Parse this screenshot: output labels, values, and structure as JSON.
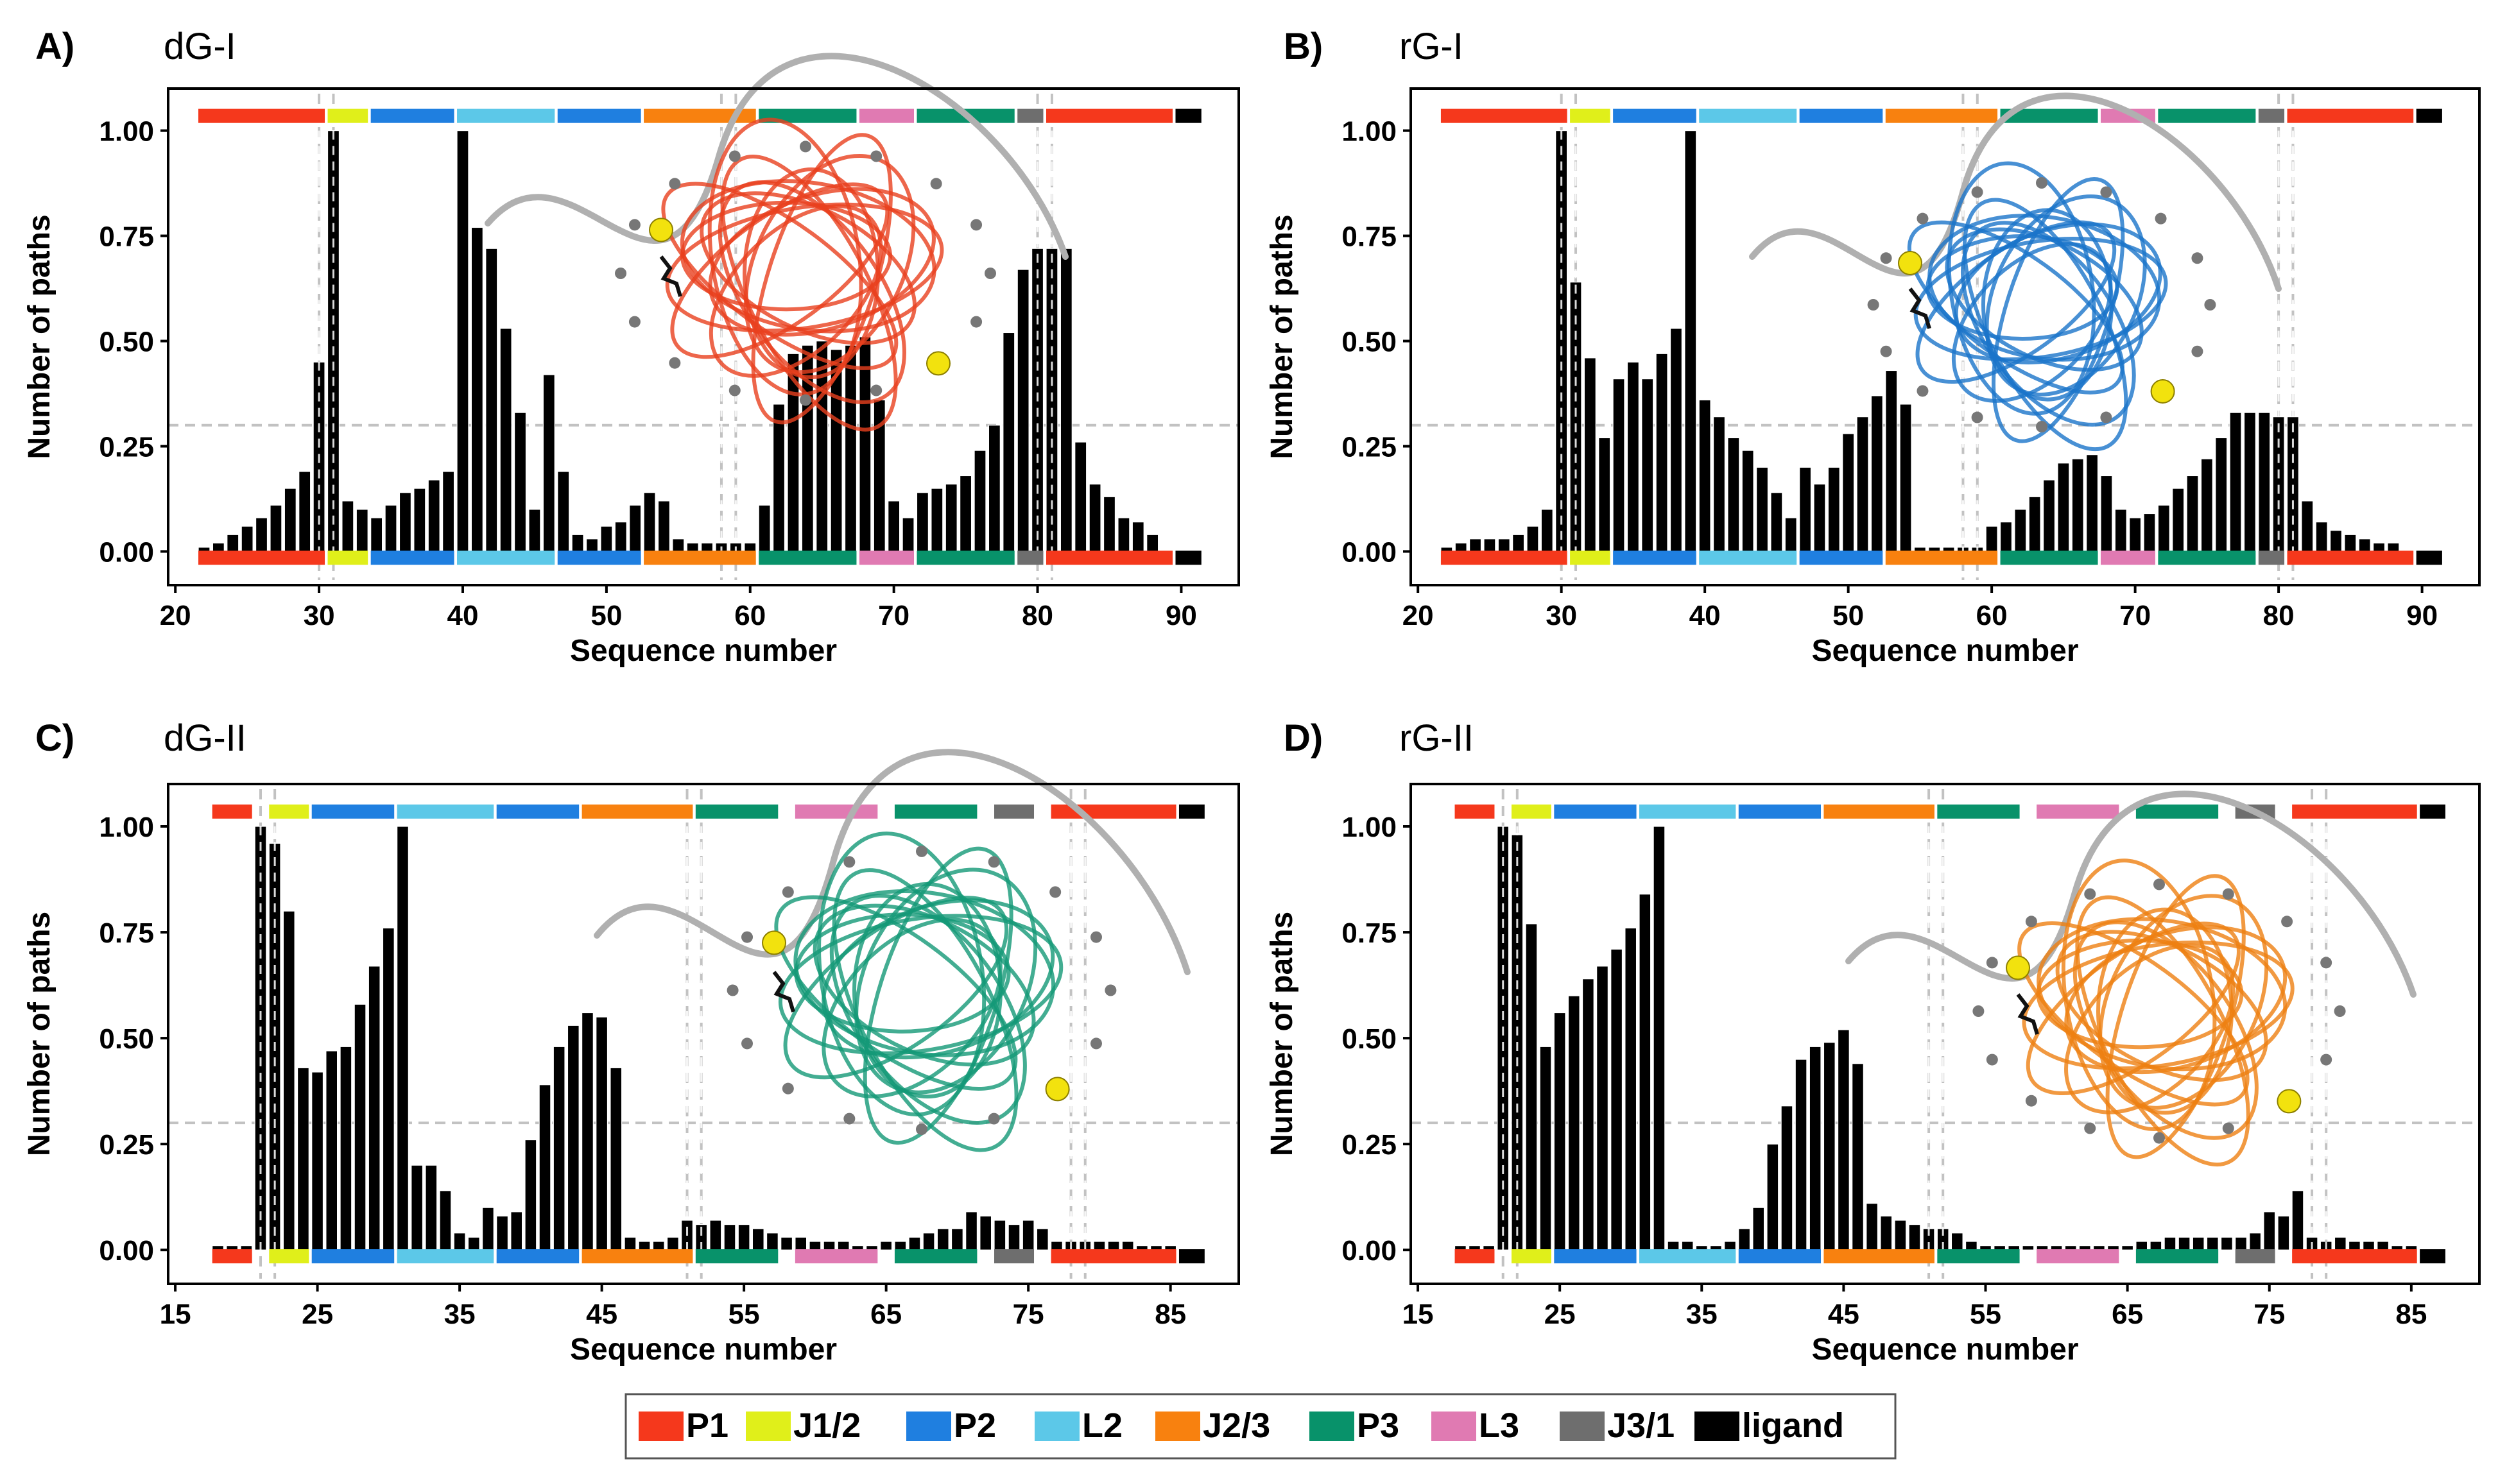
{
  "colors": {
    "P1": "#f5381c",
    "J1/2": "#e0ef1a",
    "P2": "#1f7fe0",
    "L2": "#5cc8e8",
    "J2/3": "#f8810f",
    "P3": "#08926a",
    "L3": "#e07ab2",
    "J3/1": "#6e6e6e",
    "ligand": "#000000",
    "dG-I": "#e8401e",
    "rG-I": "#1a74c9",
    "dG-II": "#149977",
    "rG-II": "#ee7f12"
  },
  "legend": [
    "P1",
    "J1/2",
    "P2",
    "L2",
    "J2/3",
    "P3",
    "L3",
    "J3/1",
    "ligand"
  ],
  "chart_data": [
    {
      "type": "bar",
      "panel": "A)",
      "title": "dG-I",
      "xlabel": "Sequence number",
      "ylabel": "Number of paths",
      "xlim": [
        19.5,
        94
      ],
      "ylim": [
        -0.08,
        1.1
      ],
      "xticks": [
        20,
        30,
        40,
        50,
        60,
        70,
        80,
        90
      ],
      "yticks": [
        0.0,
        0.25,
        0.5,
        0.75,
        1.0
      ],
      "ytick_labels": [
        "0.00",
        "0.25",
        "0.50",
        "0.75",
        "1.00"
      ],
      "hline": 0.3,
      "vlines": [
        30,
        31,
        58,
        59,
        80,
        81
      ],
      "x": [
        22,
        23,
        24,
        25,
        26,
        27,
        28,
        29,
        30,
        31,
        32,
        33,
        34,
        35,
        36,
        37,
        38,
        39,
        40,
        41,
        42,
        43,
        44,
        45,
        46,
        47,
        48,
        49,
        50,
        51,
        52,
        53,
        54,
        55,
        56,
        57,
        58,
        59,
        60,
        61,
        62,
        63,
        64,
        65,
        66,
        67,
        68,
        69,
        70,
        71,
        72,
        73,
        74,
        75,
        76,
        77,
        78,
        79,
        80,
        81,
        82,
        83,
        84,
        85,
        86,
        87,
        88,
        90
      ],
      "values": [
        0.01,
        0.02,
        0.04,
        0.06,
        0.08,
        0.11,
        0.15,
        0.19,
        0.45,
        1.0,
        0.12,
        0.1,
        0.08,
        0.11,
        0.14,
        0.15,
        0.17,
        0.19,
        1.0,
        0.77,
        0.72,
        0.53,
        0.33,
        0.1,
        0.42,
        0.19,
        0.04,
        0.03,
        0.06,
        0.07,
        0.11,
        0.14,
        0.12,
        0.03,
        0.02,
        0.02,
        0.02,
        0.02,
        0.02,
        0.11,
        0.35,
        0.47,
        0.49,
        0.5,
        0.48,
        0.49,
        0.51,
        0.36,
        0.12,
        0.08,
        0.14,
        0.15,
        0.16,
        0.18,
        0.24,
        0.3,
        0.52,
        0.67,
        0.72,
        0.72,
        0.72,
        0.26,
        0.16,
        0.13,
        0.08,
        0.07,
        0.04,
        -0.02
      ],
      "segments_top": [
        [
          22,
          30,
          "P1"
        ],
        [
          31,
          33,
          "J1/2"
        ],
        [
          34,
          39,
          "P2"
        ],
        [
          40,
          46,
          "L2"
        ],
        [
          47,
          52,
          "P2"
        ],
        [
          53,
          60,
          "J2/3"
        ],
        [
          61,
          67,
          "P3"
        ],
        [
          68,
          71,
          "L3"
        ],
        [
          72,
          78,
          "P3"
        ],
        [
          79,
          80,
          "J3/1"
        ],
        [
          81,
          89,
          "P1"
        ],
        [
          90,
          91,
          "ligand"
        ]
      ],
      "segments_bottom": [
        [
          22,
          30,
          "P1"
        ],
        [
          31,
          33,
          "J1/2"
        ],
        [
          34,
          39,
          "P2"
        ],
        [
          40,
          46,
          "L2"
        ],
        [
          47,
          52,
          "P2"
        ],
        [
          53,
          60,
          "J2/3"
        ],
        [
          61,
          67,
          "P3"
        ],
        [
          68,
          71,
          "L3"
        ],
        [
          72,
          78,
          "P3"
        ],
        [
          79,
          80,
          "J3/1"
        ],
        [
          81,
          89,
          "P1"
        ],
        [
          90,
          91,
          "ligand"
        ]
      ]
    },
    {
      "type": "bar",
      "panel": "B)",
      "title": "rG-I",
      "xlabel": "Sequence number",
      "ylabel": "Number of paths",
      "xlim": [
        19.5,
        94
      ],
      "ylim": [
        -0.08,
        1.1
      ],
      "xticks": [
        20,
        30,
        40,
        50,
        60,
        70,
        80,
        90
      ],
      "yticks": [
        0.0,
        0.25,
        0.5,
        0.75,
        1.0
      ],
      "ytick_labels": [
        "0.00",
        "0.25",
        "0.50",
        "0.75",
        "1.00"
      ],
      "hline": 0.3,
      "vlines": [
        30,
        31,
        58,
        59,
        80,
        81
      ],
      "x": [
        22,
        23,
        24,
        25,
        26,
        27,
        28,
        29,
        30,
        31,
        32,
        33,
        34,
        35,
        36,
        37,
        38,
        39,
        40,
        41,
        42,
        43,
        44,
        45,
        46,
        47,
        48,
        49,
        50,
        51,
        52,
        53,
        54,
        55,
        56,
        57,
        58,
        59,
        60,
        61,
        62,
        63,
        64,
        65,
        66,
        67,
        68,
        69,
        70,
        71,
        72,
        73,
        74,
        75,
        76,
        77,
        78,
        79,
        80,
        81,
        82,
        83,
        84,
        85,
        86,
        87,
        88,
        90
      ],
      "values": [
        0.01,
        0.02,
        0.03,
        0.03,
        0.03,
        0.04,
        0.06,
        0.1,
        1.0,
        0.64,
        0.46,
        0.27,
        0.41,
        0.45,
        0.41,
        0.47,
        0.53,
        1.0,
        0.36,
        0.32,
        0.27,
        0.24,
        0.2,
        0.14,
        0.08,
        0.2,
        0.16,
        0.2,
        0.28,
        0.32,
        0.37,
        0.43,
        0.35,
        0.01,
        0.01,
        0.01,
        0.01,
        0.01,
        0.06,
        0.07,
        0.1,
        0.13,
        0.17,
        0.21,
        0.22,
        0.23,
        0.18,
        0.1,
        0.08,
        0.09,
        0.11,
        0.15,
        0.18,
        0.22,
        0.27,
        0.33,
        0.33,
        0.33,
        0.32,
        0.32,
        0.12,
        0.07,
        0.05,
        0.04,
        0.03,
        0.02,
        0.02,
        -0.02
      ],
      "segments_top": [
        [
          22,
          30,
          "P1"
        ],
        [
          31,
          33,
          "J1/2"
        ],
        [
          34,
          39,
          "P2"
        ],
        [
          40,
          46,
          "L2"
        ],
        [
          47,
          52,
          "P2"
        ],
        [
          53,
          60,
          "J2/3"
        ],
        [
          61,
          67,
          "P3"
        ],
        [
          68,
          71,
          "L3"
        ],
        [
          72,
          78,
          "P3"
        ],
        [
          79,
          80,
          "J3/1"
        ],
        [
          81,
          89,
          "P1"
        ],
        [
          90,
          91,
          "ligand"
        ]
      ],
      "segments_bottom": [
        [
          22,
          30,
          "P1"
        ],
        [
          31,
          33,
          "J1/2"
        ],
        [
          34,
          39,
          "P2"
        ],
        [
          40,
          46,
          "L2"
        ],
        [
          47,
          52,
          "P2"
        ],
        [
          53,
          60,
          "J2/3"
        ],
        [
          61,
          67,
          "P3"
        ],
        [
          68,
          71,
          "L3"
        ],
        [
          72,
          78,
          "P3"
        ],
        [
          79,
          80,
          "J3/1"
        ],
        [
          81,
          89,
          "P1"
        ],
        [
          90,
          91,
          "ligand"
        ]
      ]
    },
    {
      "type": "bar",
      "panel": "C)",
      "title": "dG-II",
      "xlabel": "Sequence number",
      "ylabel": "Number of paths",
      "xlim": [
        14.5,
        89.8
      ],
      "ylim": [
        -0.08,
        1.1
      ],
      "xticks": [
        15,
        25,
        35,
        45,
        55,
        65,
        75,
        85
      ],
      "yticks": [
        0.0,
        0.25,
        0.5,
        0.75,
        1.0
      ],
      "ytick_labels": [
        "0.00",
        "0.25",
        "0.50",
        "0.75",
        "1.00"
      ],
      "hline": 0.3,
      "vlines": [
        21,
        22,
        51,
        52,
        78,
        79
      ],
      "x": [
        18,
        19,
        20,
        21,
        22,
        23,
        24,
        25,
        26,
        27,
        28,
        29,
        30,
        31,
        32,
        33,
        34,
        35,
        36,
        37,
        38,
        39,
        40,
        41,
        42,
        43,
        44,
        45,
        46,
        47,
        48,
        49,
        50,
        51,
        52,
        53,
        54,
        55,
        56,
        57,
        58,
        59,
        60,
        61,
        62,
        63,
        64,
        65,
        66,
        67,
        68,
        69,
        70,
        71,
        72,
        73,
        74,
        75,
        76,
        77,
        78,
        79,
        80,
        81,
        82,
        83,
        84,
        85,
        86
      ],
      "values": [
        0.01,
        0.01,
        0.01,
        1.0,
        0.96,
        0.8,
        0.43,
        0.42,
        0.47,
        0.48,
        0.58,
        0.67,
        0.76,
        1.0,
        0.2,
        0.2,
        0.14,
        0.04,
        0.03,
        0.1,
        0.08,
        0.09,
        0.26,
        0.39,
        0.48,
        0.53,
        0.56,
        0.55,
        0.43,
        0.03,
        0.02,
        0.02,
        0.03,
        0.07,
        0.06,
        0.07,
        0.06,
        0.06,
        0.05,
        0.04,
        0.03,
        0.03,
        0.02,
        0.02,
        0.02,
        0.01,
        0.01,
        0.02,
        0.02,
        0.03,
        0.04,
        0.05,
        0.05,
        0.09,
        0.08,
        0.07,
        0.06,
        0.07,
        0.05,
        0.02,
        0.02,
        0.02,
        0.02,
        0.02,
        0.02,
        0.01,
        0.01,
        0.01,
        -0.01
      ],
      "segments_top": [
        [
          18,
          20,
          "P1"
        ],
        [
          22,
          24,
          "J1/2"
        ],
        [
          25,
          30,
          "P2"
        ],
        [
          31,
          37,
          "L2"
        ],
        [
          38,
          43,
          "P2"
        ],
        [
          44,
          51,
          "J2/3"
        ],
        [
          52,
          57,
          "P3"
        ],
        [
          59,
          64,
          "L3"
        ],
        [
          66,
          71,
          "P3"
        ],
        [
          73,
          75,
          "J3/1"
        ],
        [
          77,
          85,
          "P1"
        ],
        [
          86,
          87,
          "ligand"
        ]
      ],
      "segments_bottom": [
        [
          18,
          20,
          "P1"
        ],
        [
          22,
          24,
          "J1/2"
        ],
        [
          25,
          30,
          "P2"
        ],
        [
          31,
          37,
          "L2"
        ],
        [
          38,
          43,
          "P2"
        ],
        [
          44,
          51,
          "J2/3"
        ],
        [
          52,
          57,
          "P3"
        ],
        [
          59,
          64,
          "L3"
        ],
        [
          66,
          71,
          "P3"
        ],
        [
          73,
          75,
          "J3/1"
        ],
        [
          77,
          85,
          "P1"
        ],
        [
          86,
          87,
          "ligand"
        ]
      ]
    },
    {
      "type": "bar",
      "panel": "D)",
      "title": "rG-II",
      "xlabel": "Sequence number",
      "ylabel": "Number of paths",
      "xlim": [
        14.5,
        89.8
      ],
      "ylim": [
        -0.08,
        1.1
      ],
      "xticks": [
        15,
        25,
        35,
        45,
        55,
        65,
        75,
        85
      ],
      "yticks": [
        0.0,
        0.25,
        0.5,
        0.75,
        1.0
      ],
      "ytick_labels": [
        "0.00",
        "0.25",
        "0.50",
        "0.75",
        "1.00"
      ],
      "hline": 0.3,
      "vlines": [
        21,
        22,
        51,
        52,
        78,
        79
      ],
      "x": [
        18,
        19,
        20,
        21,
        22,
        23,
        24,
        25,
        26,
        27,
        28,
        29,
        30,
        31,
        32,
        33,
        34,
        35,
        36,
        37,
        38,
        39,
        40,
        41,
        42,
        43,
        44,
        45,
        46,
        47,
        48,
        49,
        50,
        51,
        52,
        53,
        54,
        55,
        56,
        57,
        58,
        59,
        60,
        61,
        62,
        63,
        64,
        65,
        66,
        67,
        68,
        69,
        70,
        71,
        72,
        73,
        74,
        75,
        76,
        77,
        78,
        79,
        80,
        81,
        82,
        83,
        84,
        85,
        86
      ],
      "values": [
        0.01,
        0.01,
        0.01,
        1.0,
        0.98,
        0.77,
        0.48,
        0.56,
        0.6,
        0.64,
        0.67,
        0.71,
        0.76,
        0.84,
        1.0,
        0.02,
        0.02,
        0.01,
        0.01,
        0.02,
        0.05,
        0.1,
        0.25,
        0.34,
        0.45,
        0.48,
        0.49,
        0.52,
        0.44,
        0.11,
        0.08,
        0.07,
        0.06,
        0.05,
        0.05,
        0.04,
        0.02,
        0.01,
        0.01,
        0.01,
        0.01,
        0.01,
        0.01,
        0.01,
        0.01,
        0.01,
        0.01,
        0.01,
        0.02,
        0.02,
        0.03,
        0.03,
        0.03,
        0.03,
        0.03,
        0.03,
        0.04,
        0.09,
        0.08,
        0.14,
        0.03,
        0.02,
        0.03,
        0.02,
        0.02,
        0.02,
        0.01,
        0.01,
        -0.02
      ],
      "segments_top": [
        [
          18,
          20,
          "P1"
        ],
        [
          22,
          24,
          "J1/2"
        ],
        [
          25,
          30,
          "P2"
        ],
        [
          31,
          37,
          "L2"
        ],
        [
          38,
          43,
          "P2"
        ],
        [
          44,
          51,
          "J2/3"
        ],
        [
          52,
          57,
          "P3"
        ],
        [
          59,
          64,
          "L3"
        ],
        [
          66,
          71,
          "P3"
        ],
        [
          73,
          75,
          "J3/1"
        ],
        [
          77,
          85,
          "P1"
        ],
        [
          86,
          87,
          "ligand"
        ]
      ],
      "segments_bottom": [
        [
          18,
          20,
          "P1"
        ],
        [
          22,
          24,
          "J1/2"
        ],
        [
          25,
          30,
          "P2"
        ],
        [
          31,
          37,
          "L2"
        ],
        [
          38,
          43,
          "P2"
        ],
        [
          44,
          51,
          "J2/3"
        ],
        [
          52,
          57,
          "P3"
        ],
        [
          59,
          64,
          "L3"
        ],
        [
          66,
          71,
          "P3"
        ],
        [
          73,
          75,
          "J3/1"
        ],
        [
          77,
          85,
          "P1"
        ],
        [
          86,
          87,
          "ligand"
        ]
      ]
    }
  ]
}
